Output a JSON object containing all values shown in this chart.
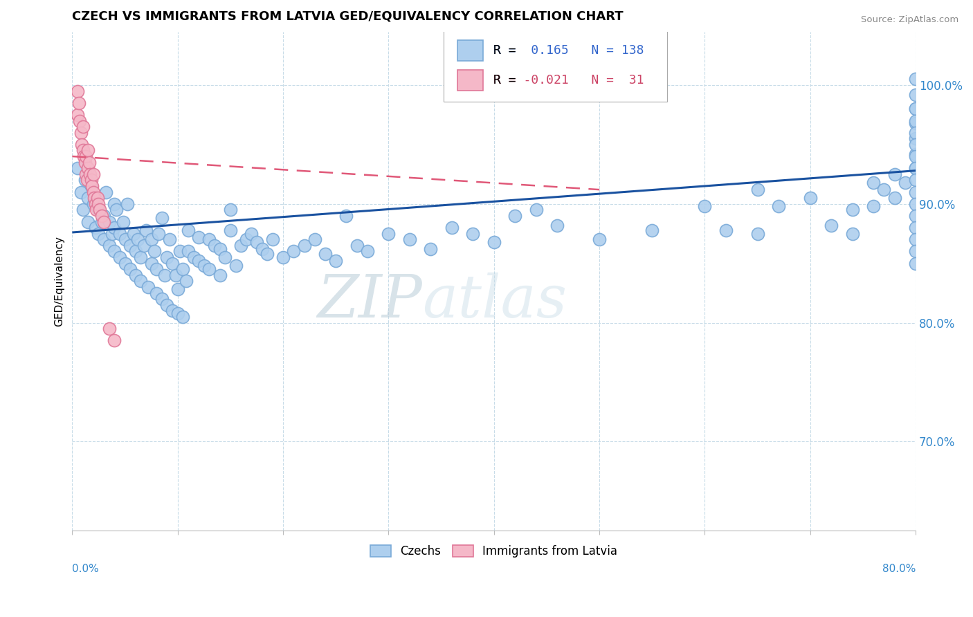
{
  "title": "CZECH VS IMMIGRANTS FROM LATVIA GED/EQUIVALENCY CORRELATION CHART",
  "source": "Source: ZipAtlas.com",
  "ylabel": "GED/Equivalency",
  "ytick_values": [
    0.7,
    0.8,
    0.9,
    1.0
  ],
  "xmin": 0.0,
  "xmax": 0.8,
  "ymin": 0.625,
  "ymax": 1.045,
  "legend_blue_r": "0.165",
  "legend_blue_n": "138",
  "legend_pink_r": "-0.021",
  "legend_pink_n": "31",
  "blue_color": "#aecfee",
  "blue_edge": "#7aaad8",
  "pink_color": "#f5b8c8",
  "pink_edge": "#e07898",
  "blue_line_color": "#1a52a0",
  "pink_line_color": "#e05878",
  "watermark_color": "#ddeef8",
  "blue_line_x": [
    0.0,
    0.8
  ],
  "blue_line_y": [
    0.876,
    0.928
  ],
  "pink_line_x": [
    0.0,
    0.5
  ],
  "pink_line_y": [
    0.94,
    0.912
  ],
  "blue_x": [
    0.005,
    0.008,
    0.01,
    0.012,
    0.015,
    0.015,
    0.018,
    0.02,
    0.022,
    0.025,
    0.025,
    0.028,
    0.03,
    0.03,
    0.032,
    0.035,
    0.035,
    0.038,
    0.04,
    0.04,
    0.04,
    0.042,
    0.045,
    0.045,
    0.048,
    0.05,
    0.05,
    0.052,
    0.055,
    0.055,
    0.058,
    0.06,
    0.06,
    0.062,
    0.065,
    0.065,
    0.068,
    0.07,
    0.072,
    0.075,
    0.075,
    0.078,
    0.08,
    0.08,
    0.082,
    0.085,
    0.085,
    0.088,
    0.09,
    0.09,
    0.092,
    0.095,
    0.095,
    0.098,
    0.1,
    0.1,
    0.102,
    0.105,
    0.105,
    0.108,
    0.11,
    0.11,
    0.115,
    0.12,
    0.12,
    0.125,
    0.13,
    0.13,
    0.135,
    0.14,
    0.14,
    0.145,
    0.15,
    0.15,
    0.155,
    0.16,
    0.165,
    0.17,
    0.175,
    0.18,
    0.185,
    0.19,
    0.2,
    0.21,
    0.22,
    0.23,
    0.24,
    0.25,
    0.26,
    0.27,
    0.28,
    0.3,
    0.32,
    0.34,
    0.36,
    0.38,
    0.4,
    0.42,
    0.44,
    0.46,
    0.5,
    0.55,
    0.6,
    0.62,
    0.65,
    0.65,
    0.67,
    0.7,
    0.72,
    0.74,
    0.74,
    0.76,
    0.76,
    0.77,
    0.78,
    0.78,
    0.79,
    0.8,
    0.8,
    0.8,
    0.8,
    0.8,
    0.8,
    0.8,
    0.8,
    0.8,
    0.8,
    0.8,
    0.8,
    0.8,
    0.8,
    0.8,
    0.8,
    0.8,
    0.8,
    0.8,
    0.8,
    0.8
  ],
  "blue_y": [
    0.93,
    0.91,
    0.895,
    0.92,
    0.905,
    0.885,
    0.915,
    0.9,
    0.88,
    0.875,
    0.895,
    0.885,
    0.87,
    0.89,
    0.91,
    0.865,
    0.885,
    0.875,
    0.86,
    0.88,
    0.9,
    0.895,
    0.855,
    0.875,
    0.885,
    0.85,
    0.87,
    0.9,
    0.845,
    0.865,
    0.875,
    0.84,
    0.86,
    0.87,
    0.835,
    0.855,
    0.865,
    0.878,
    0.83,
    0.85,
    0.87,
    0.86,
    0.825,
    0.845,
    0.875,
    0.888,
    0.82,
    0.84,
    0.815,
    0.855,
    0.87,
    0.81,
    0.85,
    0.84,
    0.808,
    0.828,
    0.86,
    0.805,
    0.845,
    0.835,
    0.86,
    0.878,
    0.855,
    0.852,
    0.872,
    0.848,
    0.87,
    0.845,
    0.865,
    0.84,
    0.862,
    0.855,
    0.878,
    0.895,
    0.848,
    0.865,
    0.87,
    0.875,
    0.868,
    0.862,
    0.858,
    0.87,
    0.855,
    0.86,
    0.865,
    0.87,
    0.858,
    0.852,
    0.89,
    0.865,
    0.86,
    0.875,
    0.87,
    0.862,
    0.88,
    0.875,
    0.868,
    0.89,
    0.895,
    0.882,
    0.87,
    0.878,
    0.898,
    0.878,
    0.912,
    0.875,
    0.898,
    0.905,
    0.882,
    0.895,
    0.875,
    0.918,
    0.898,
    0.912,
    0.925,
    0.905,
    0.918,
    0.93,
    0.942,
    0.955,
    0.968,
    0.98,
    0.992,
    1.005,
    0.98,
    0.97,
    0.96,
    0.95,
    0.94,
    0.93,
    0.92,
    0.91,
    0.9,
    0.89,
    0.88,
    0.87,
    0.86,
    0.85
  ],
  "pink_x": [
    0.005,
    0.005,
    0.006,
    0.007,
    0.008,
    0.009,
    0.01,
    0.01,
    0.011,
    0.012,
    0.013,
    0.013,
    0.014,
    0.015,
    0.015,
    0.016,
    0.017,
    0.018,
    0.019,
    0.02,
    0.02,
    0.021,
    0.022,
    0.023,
    0.024,
    0.025,
    0.026,
    0.028,
    0.03,
    0.035,
    0.04
  ],
  "pink_y": [
    0.995,
    0.975,
    0.985,
    0.97,
    0.96,
    0.95,
    0.945,
    0.965,
    0.94,
    0.935,
    0.925,
    0.94,
    0.92,
    0.93,
    0.945,
    0.935,
    0.925,
    0.92,
    0.915,
    0.91,
    0.925,
    0.905,
    0.9,
    0.895,
    0.905,
    0.9,
    0.895,
    0.89,
    0.885,
    0.795,
    0.785
  ]
}
